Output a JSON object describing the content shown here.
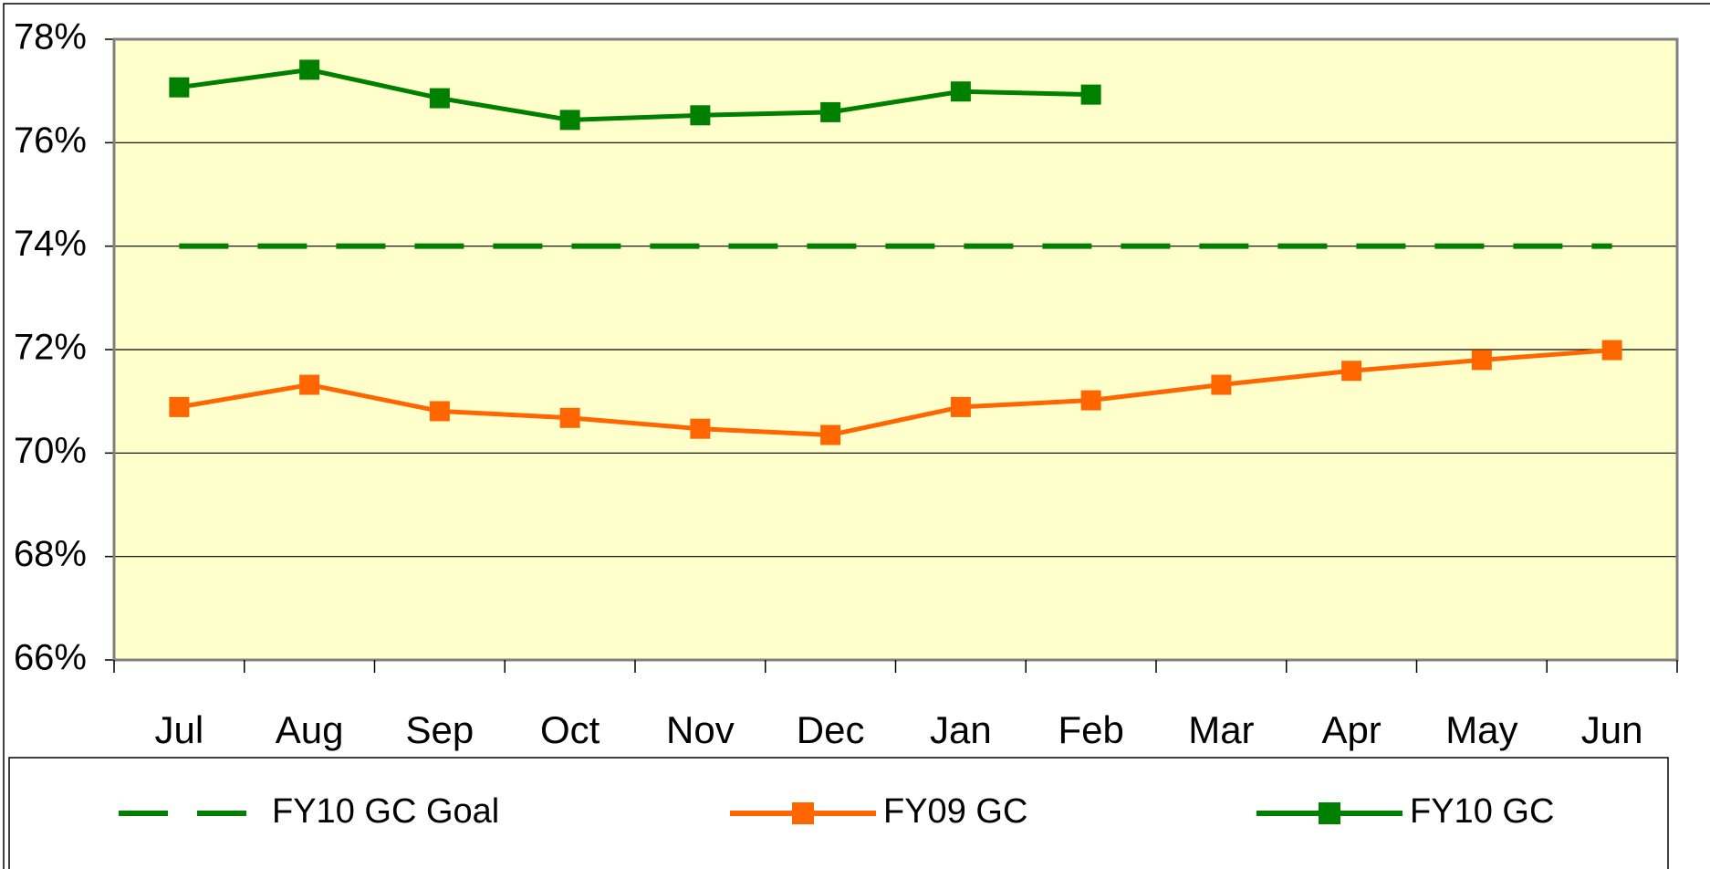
{
  "chart_data": {
    "type": "line",
    "categories": [
      "Jul",
      "Aug",
      "Sep",
      "Oct",
      "Nov",
      "Dec",
      "Jan",
      "Feb",
      "Mar",
      "Apr",
      "May",
      "Jun"
    ],
    "series": [
      {
        "name": "FY10 GC Goal",
        "color": "#008000",
        "dashed": true,
        "markers": false,
        "values": [
          74,
          74,
          74,
          74,
          74,
          74,
          74,
          74,
          74,
          74,
          74,
          74
        ]
      },
      {
        "name": "FY09 GC",
        "color": "#ff6600",
        "dashed": false,
        "markers": true,
        "values": [
          70.89,
          71.32,
          70.81,
          70.68,
          70.47,
          70.35,
          70.89,
          71.02,
          71.32,
          71.59,
          71.8,
          71.99
        ]
      },
      {
        "name": "FY10 GC",
        "color": "#008000",
        "dashed": false,
        "markers": true,
        "values": [
          77.07,
          77.41,
          76.86,
          76.44,
          76.53,
          76.59,
          76.99,
          76.93,
          null,
          null,
          null,
          null
        ]
      }
    ],
    "ylim": [
      66,
      78
    ],
    "yticks": [
      {
        "value": 66,
        "label": "66%"
      },
      {
        "value": 68,
        "label": "68%"
      },
      {
        "value": 70,
        "label": "70%"
      },
      {
        "value": 72,
        "label": "72%"
      },
      {
        "value": 74,
        "label": "74%"
      },
      {
        "value": 76,
        "label": "76%"
      },
      {
        "value": 78,
        "label": "78%"
      }
    ],
    "grid": true,
    "legend": "bottom",
    "plot_background": "#ffffcc"
  }
}
